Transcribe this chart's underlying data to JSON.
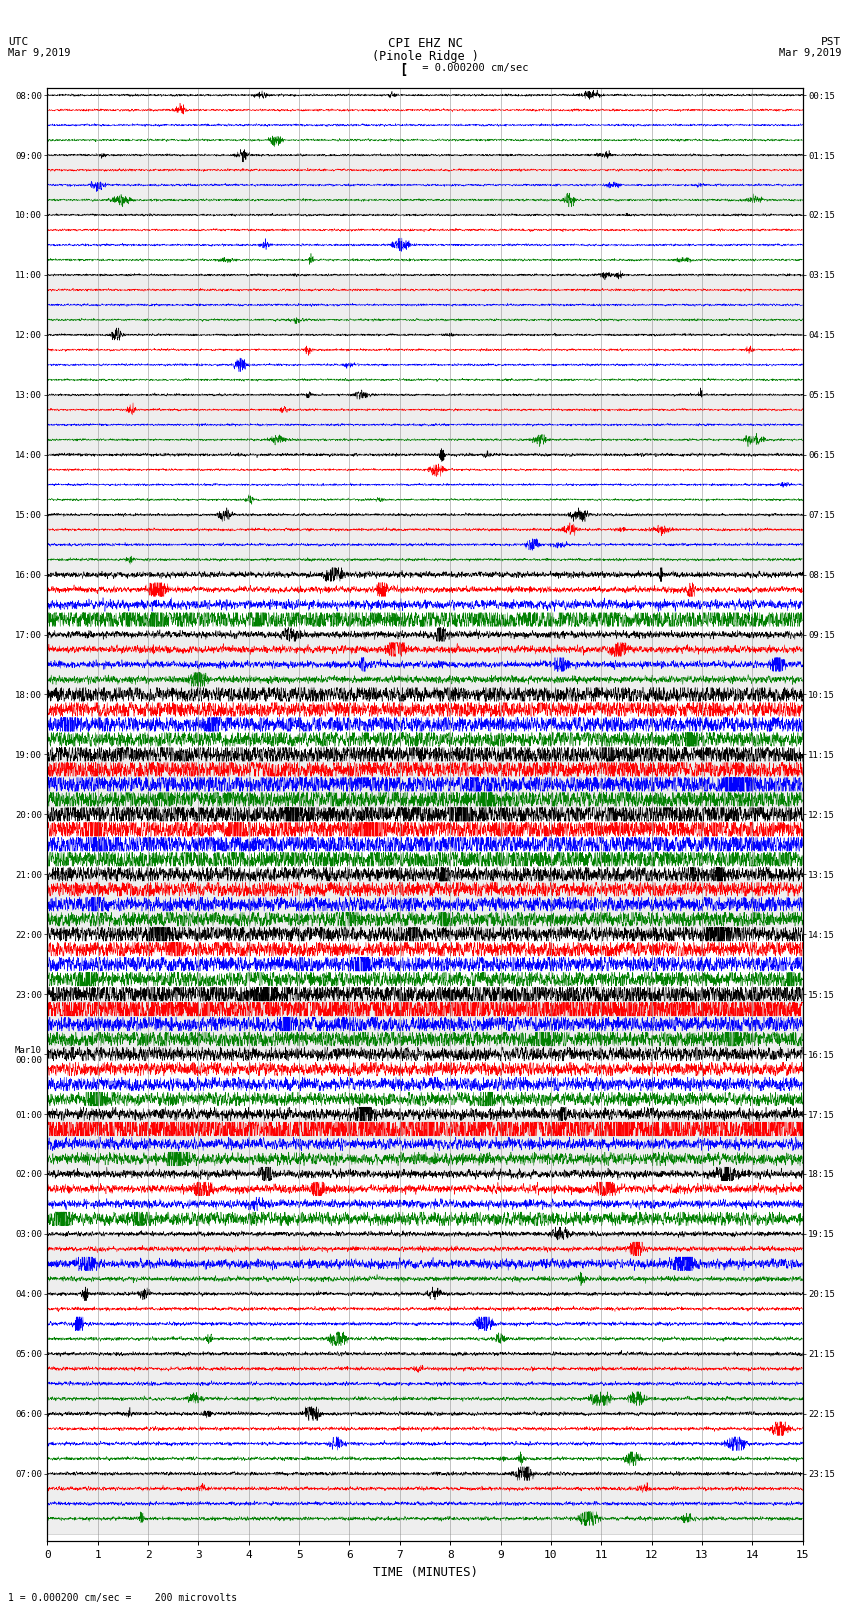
{
  "title_line1": "CPI EHZ NC",
  "title_line2": "(Pinole Ridge )",
  "scale_label": " = 0.000200 cm/sec",
  "left_header": "UTC",
  "left_date": "Mar 9,2019",
  "right_header": "PST",
  "right_date": "Mar 9,2019",
  "bottom_label": "TIME (MINUTES)",
  "bottom_note": "1 = 0.000200 cm/sec =    200 microvolts",
  "utc_times": [
    "08:00",
    "09:00",
    "10:00",
    "11:00",
    "12:00",
    "13:00",
    "14:00",
    "15:00",
    "16:00",
    "17:00",
    "18:00",
    "19:00",
    "20:00",
    "21:00",
    "22:00",
    "23:00",
    "Mar10\n00:00",
    "01:00",
    "02:00",
    "03:00",
    "04:00",
    "05:00",
    "06:00",
    "07:00"
  ],
  "pst_times": [
    "00:15",
    "01:15",
    "02:15",
    "03:15",
    "04:15",
    "05:15",
    "06:15",
    "07:15",
    "08:15",
    "09:15",
    "10:15",
    "11:15",
    "12:15",
    "13:15",
    "14:15",
    "15:15",
    "16:15",
    "17:15",
    "18:15",
    "19:15",
    "20:15",
    "21:15",
    "22:15",
    "23:15"
  ],
  "colors": [
    "black",
    "red",
    "blue",
    "green"
  ],
  "bg_color": "#ffffff",
  "alt_bg_color": "#f0f0f0",
  "grid_color": "#888888",
  "n_traces_per_hour": 4,
  "n_hours": 24,
  "xlim": [
    0,
    15
  ],
  "xticks": [
    0,
    1,
    2,
    3,
    4,
    5,
    6,
    7,
    8,
    9,
    10,
    11,
    12,
    13,
    14,
    15
  ]
}
